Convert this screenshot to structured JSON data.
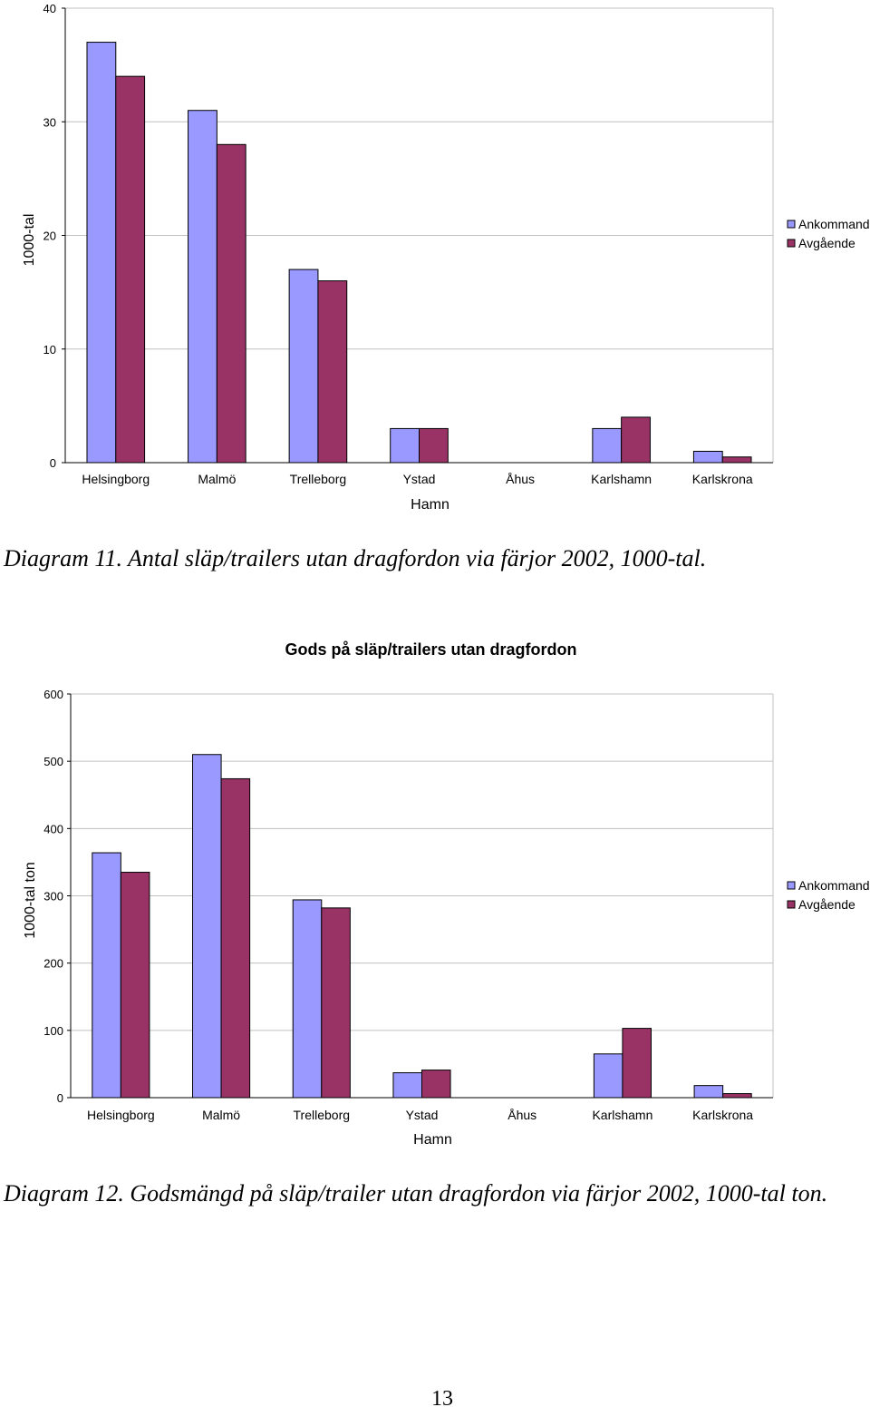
{
  "chart_data": [
    {
      "type": "bar",
      "title": "",
      "xlabel": "Hamn",
      "ylabel": "1000-tal",
      "ylim": [
        0,
        40
      ],
      "yticks": [
        0,
        10,
        20,
        30,
        40
      ],
      "grid": true,
      "legend_position": "right",
      "categories": [
        "Helsingborg",
        "Malmö",
        "Trelleborg",
        "Ystad",
        "Åhus",
        "Karlshamn",
        "Karlskrona"
      ],
      "series": [
        {
          "name": "Ankommande",
          "color": "#9999ff",
          "values": [
            37,
            31,
            17,
            3,
            0,
            3,
            1
          ]
        },
        {
          "name": "Avgående",
          "color": "#993366",
          "values": [
            34,
            28,
            16,
            3,
            0,
            4,
            0.5
          ]
        }
      ]
    },
    {
      "type": "bar",
      "title": "Gods på släp/trailers utan dragfordon",
      "xlabel": "Hamn",
      "ylabel": "1000-tal ton",
      "ylim": [
        0,
        600
      ],
      "yticks": [
        0,
        100,
        200,
        300,
        400,
        500,
        600
      ],
      "grid": true,
      "legend_position": "right",
      "categories": [
        "Helsingborg",
        "Malmö",
        "Trelleborg",
        "Ystad",
        "Åhus",
        "Karlshamn",
        "Karlskrona"
      ],
      "series": [
        {
          "name": "Ankommande",
          "color": "#9999ff",
          "values": [
            364,
            510,
            294,
            37,
            0,
            65,
            18
          ]
        },
        {
          "name": "Avgående",
          "color": "#993366",
          "values": [
            335,
            474,
            282,
            41,
            0,
            103,
            6
          ]
        }
      ]
    }
  ],
  "captions": {
    "diagram11": "Diagram 11. Antal släp/trailers utan dragfordon via färjor 2002, 1000-tal.",
    "diagram12": "Diagram 12. Godsmängd på släp/trailer utan dragfordon via färjor 2002, 1000-tal ton."
  },
  "page_number": "13"
}
